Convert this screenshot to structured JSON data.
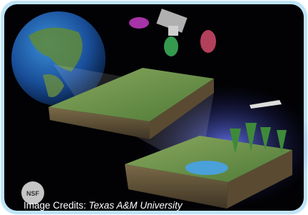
{
  "logo": "NSF",
  "credit": {
    "label": "Image Credits: ",
    "source": "Texas A&M University"
  }
}
